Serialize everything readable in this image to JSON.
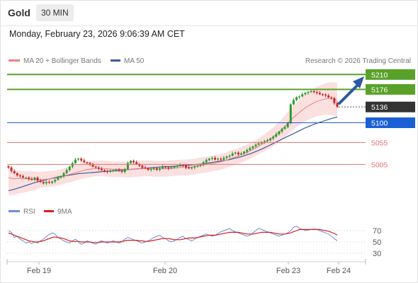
{
  "header": {
    "title": "Gold",
    "timeframe": "30 MIN"
  },
  "datetime": "Monday, February 23, 2026 9:06:39 AM CET",
  "legend": {
    "ma20": "MA 20 + Bollinger Bands",
    "ma50": "MA 50",
    "source": "Research © 2026 Trading Central"
  },
  "rsi_legend": {
    "rsi": "RSI",
    "ma": "9MA"
  },
  "colors": {
    "up": "#2f9a2f",
    "down": "#c62828",
    "ma20": "#f08080",
    "ma50": "#3b5b9c",
    "band": "#f9d6d6",
    "resistance": "#5aa12a",
    "current": "#333333",
    "pivot": "#1a5fd6",
    "support": "#e57373",
    "arrow": "#2c5aa0",
    "rsi": "#6b8ed6",
    "rsi_ma": "#d62020"
  },
  "icons": {
    "projection": "up-right-arrow-icon"
  },
  "chart_data": {
    "type": "candlestick",
    "xaxis": {
      "labels": [
        "Feb 19",
        "Feb 20",
        "Feb 23",
        "Feb 24"
      ]
    },
    "price_levels": [
      {
        "value": 5210,
        "label": "5210",
        "kind": "resistance"
      },
      {
        "value": 5176,
        "label": "5176",
        "kind": "resistance"
      },
      {
        "value": 5136,
        "label": "5136",
        "kind": "current"
      },
      {
        "value": 5100,
        "label": "5100",
        "kind": "pivot"
      },
      {
        "value": 5055,
        "label": "5055",
        "kind": "support"
      },
      {
        "value": 5005,
        "label": "5005",
        "kind": "support"
      }
    ],
    "close_series": [
      4998,
      4990,
      4985,
      4980,
      4978,
      4975,
      4975,
      4972,
      4970,
      4975,
      4968,
      4965,
      4962,
      4965,
      4963,
      4966,
      4970,
      4975,
      4978,
      4985,
      4992,
      5000,
      5008,
      5016,
      5018,
      5014,
      5010,
      5008,
      5005,
      5000,
      4998,
      4995,
      4992,
      4990,
      4988,
      4990,
      4992,
      4993,
      4990,
      4988,
      4994,
      5008,
      5013,
      5010,
      5006,
      5002,
      4998,
      4996,
      4993,
      4994,
      4996,
      4993,
      4996,
      5000,
      4998,
      4996,
      4998,
      5000,
      5002,
      5004,
      5002,
      4998,
      4996,
      4998,
      5000,
      5002,
      5005,
      5010,
      5015,
      5018,
      5020,
      5016,
      5018,
      5016,
      5020,
      5023,
      5025,
      5030,
      5032,
      5028,
      5030,
      5034,
      5038,
      5042,
      5046,
      5050,
      5053,
      5056,
      5058,
      5060,
      5064,
      5068,
      5074,
      5080,
      5086,
      5090,
      5100,
      5142,
      5152,
      5158,
      5160,
      5165,
      5168,
      5170,
      5172,
      5170,
      5168,
      5165,
      5164,
      5162,
      5158,
      5156,
      5145,
      5136
    ],
    "ma20_series": [
      4975,
      4972,
      4973,
      4972,
      4972,
      4971,
      4970,
      4971,
      4972,
      4974,
      4976,
      4980,
      4983,
      4987,
      4990,
      4993,
      4995,
      4996,
      4996,
      4995,
      4994,
      4994,
      4994,
      4993,
      4994,
      4995,
      4996,
      4996,
      4995,
      4995,
      4995,
      4996,
      4997,
      4998,
      4998,
      4999,
      5001,
      5003,
      5005,
      5007,
      5009,
      5012,
      5016,
      5020,
      5024,
      5029,
      5034,
      5040,
      5047,
      5054,
      5062,
      5070,
      5080,
      5092,
      5105,
      5116,
      5126,
      5135,
      5142,
      5148,
      5152,
      5155,
      5155,
      5152
    ],
    "ma50_series": [
      4945,
      4948,
      4952,
      4956,
      4960,
      4964,
      4967,
      4970,
      4973,
      4976,
      4978,
      4980,
      4982,
      4984,
      4985,
      4986,
      4987,
      4988,
      4989,
      4990,
      4991,
      4992,
      4993,
      4994,
      4995,
      4996,
      4997,
      4998,
      4999,
      5000,
      5000,
      5001,
      5002,
      5003,
      5004,
      5005,
      5006,
      5008,
      5010,
      5012,
      5014,
      5016,
      5019,
      5022,
      5026,
      5030,
      5035,
      5040,
      5046,
      5052,
      5058,
      5064,
      5070,
      5076,
      5082,
      5088,
      5093,
      5098,
      5102,
      5106,
      5110,
      5113
    ],
    "rsi": {
      "ticks": [
        "70",
        "50",
        "30"
      ],
      "rsi_series": [
        70,
        67,
        58,
        60,
        55,
        52,
        48,
        50,
        47,
        50,
        48,
        52,
        55,
        60,
        63,
        66,
        64,
        58,
        55,
        52,
        50,
        48,
        52,
        55,
        50,
        46,
        48,
        52,
        50,
        48,
        46,
        50,
        52,
        50,
        48,
        50,
        52,
        50,
        48,
        50,
        55,
        58,
        56,
        54,
        52,
        50,
        48,
        50,
        52,
        55,
        58,
        60,
        62,
        58,
        56,
        52,
        50,
        52,
        55,
        58,
        60,
        56,
        54,
        52,
        55,
        58,
        60,
        62,
        64,
        62,
        60,
        62,
        65,
        68,
        70,
        72,
        74,
        70,
        68,
        66,
        64,
        62,
        60,
        62,
        66,
        70,
        74,
        72,
        70,
        68,
        66,
        64,
        62,
        60,
        62,
        64,
        66,
        70,
        76,
        78,
        74,
        72,
        70,
        71,
        72,
        73,
        72,
        70,
        68,
        66,
        64,
        60,
        56,
        52
      ],
      "ma_series": [
        66,
        64,
        62,
        60,
        58,
        56,
        54,
        52,
        51,
        50,
        50,
        51,
        52,
        54,
        56,
        58,
        59,
        58,
        57,
        56,
        54,
        52,
        51,
        51,
        51,
        50,
        50,
        50,
        50,
        49,
        49,
        49,
        50,
        50,
        50,
        50,
        50,
        50,
        50,
        51,
        52,
        53,
        53,
        53,
        53,
        52,
        52,
        51,
        51,
        52,
        53,
        54,
        55,
        56,
        56,
        56,
        55,
        54,
        54,
        54,
        55,
        56,
        57,
        57,
        57,
        58,
        59,
        60,
        61,
        62,
        62,
        62,
        63,
        64,
        65,
        66,
        67,
        67,
        67,
        67,
        66,
        65,
        64,
        64,
        64,
        65,
        66,
        67,
        67,
        67,
        67,
        66,
        65,
        64,
        64,
        64,
        65,
        66,
        68,
        70,
        72,
        72,
        72,
        72,
        72,
        72,
        72,
        72,
        71,
        70,
        69,
        67,
        65,
        62
      ]
    }
  }
}
